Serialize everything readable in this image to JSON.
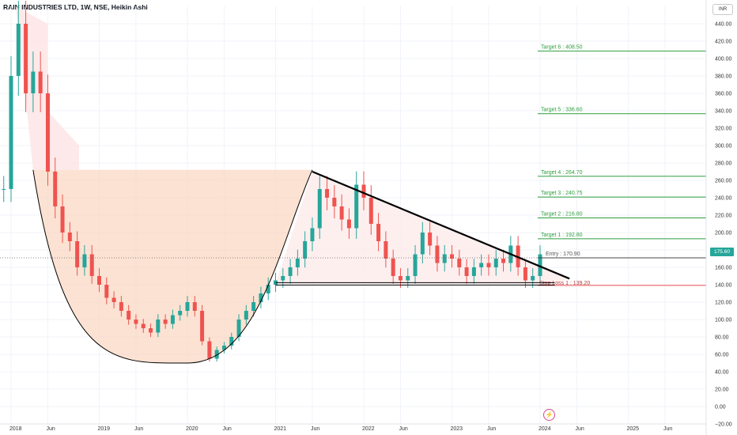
{
  "header": {
    "title": "RAIN INDUSTRIES LTD, 1W, NSE, Heikin Ashi"
  },
  "currency": "INR",
  "last_price_label": "175.60",
  "colors": {
    "up": "#26a69a",
    "down": "#ef5350",
    "target": "#2e9e3e",
    "stop": "#ef5350",
    "trend": "#000000"
  },
  "icons": {
    "bolt": "lightning-bolt-icon"
  },
  "chart_data": {
    "type": "candlestick",
    "title": "RAIN INDUSTRIES LTD, 1W, NSE, Heikin Ashi",
    "ylim": [
      -20,
      460
    ],
    "y_ticks": [
      -20,
      0,
      20,
      40,
      60,
      80,
      100,
      120,
      140,
      160,
      180,
      200,
      220,
      240,
      260,
      280,
      300,
      320,
      340,
      360,
      380,
      400,
      420,
      440
    ],
    "y_tick_labels": [
      "−20.00",
      "0.00",
      "20.00",
      "40.00",
      "60.00",
      "80.00",
      "100.00",
      "120.00",
      "140.00",
      "160.00",
      "180.00",
      "200.00",
      "220.00",
      "240.00",
      "260.00",
      "280.00",
      "300.00",
      "320.00",
      "340.00",
      "360.00",
      "380.00",
      "400.00",
      "420.00",
      "440.00"
    ],
    "x_ticks": [
      {
        "date": "2018-01",
        "label": "2018"
      },
      {
        "date": "2018-06",
        "label": "Jun"
      },
      {
        "date": "2019-01",
        "label": "2019"
      },
      {
        "date": "2019-06",
        "label": "Jun"
      },
      {
        "date": "2020-01",
        "label": "2020"
      },
      {
        "date": "2020-06",
        "label": "Jun"
      },
      {
        "date": "2021-01",
        "label": "2021"
      },
      {
        "date": "2021-06",
        "label": "Jun"
      },
      {
        "date": "2022-01",
        "label": "2022"
      },
      {
        "date": "2022-06",
        "label": "Jun"
      },
      {
        "date": "2023-01",
        "label": "2023"
      },
      {
        "date": "2023-06",
        "label": "Jun"
      },
      {
        "date": "2024-01",
        "label": "2024"
      },
      {
        "date": "2024-06",
        "label": "Jun"
      },
      {
        "date": "2025-01",
        "label": "2025"
      },
      {
        "date": "2025-06",
        "label": "Jun"
      }
    ],
    "price_path": [
      [
        "2017-12",
        250
      ],
      [
        "2018-01",
        380
      ],
      [
        "2018-02",
        440
      ],
      [
        "2018-03",
        360
      ],
      [
        "2018-04",
        385
      ],
      [
        "2018-05",
        360
      ],
      [
        "2018-06",
        270
      ],
      [
        "2018-07",
        230
      ],
      [
        "2018-08",
        200
      ],
      [
        "2018-09",
        190
      ],
      [
        "2018-10",
        160
      ],
      [
        "2018-11",
        175
      ],
      [
        "2018-12",
        150
      ],
      [
        "2019-01",
        140
      ],
      [
        "2019-02",
        125
      ],
      [
        "2019-03",
        120
      ],
      [
        "2019-04",
        110
      ],
      [
        "2019-05",
        100
      ],
      [
        "2019-06",
        95
      ],
      [
        "2019-07",
        90
      ],
      [
        "2019-08",
        85
      ],
      [
        "2019-09",
        100
      ],
      [
        "2019-10",
        95
      ],
      [
        "2019-11",
        105
      ],
      [
        "2019-12",
        110
      ],
      [
        "2020-01",
        120
      ],
      [
        "2020-02",
        110
      ],
      [
        "2020-03",
        75
      ],
      [
        "2020-04",
        55
      ],
      [
        "2020-05",
        65
      ],
      [
        "2020-06",
        70
      ],
      [
        "2020-07",
        80
      ],
      [
        "2020-08",
        100
      ],
      [
        "2020-09",
        110
      ],
      [
        "2020-10",
        120
      ],
      [
        "2020-11",
        130
      ],
      [
        "2020-12",
        140
      ],
      [
        "2021-01",
        145
      ],
      [
        "2021-02",
        150
      ],
      [
        "2021-03",
        160
      ],
      [
        "2021-04",
        170
      ],
      [
        "2021-05",
        190
      ],
      [
        "2021-06",
        205
      ],
      [
        "2021-07",
        250
      ],
      [
        "2021-08",
        240
      ],
      [
        "2021-09",
        230
      ],
      [
        "2021-10",
        215
      ],
      [
        "2021-11",
        205
      ],
      [
        "2021-12",
        255
      ],
      [
        "2022-01",
        240
      ],
      [
        "2022-02",
        210
      ],
      [
        "2022-03",
        190
      ],
      [
        "2022-04",
        170
      ],
      [
        "2022-05",
        150
      ],
      [
        "2022-06",
        145
      ],
      [
        "2022-07",
        150
      ],
      [
        "2022-08",
        175
      ],
      [
        "2022-09",
        200
      ],
      [
        "2022-10",
        185
      ],
      [
        "2022-11",
        165
      ],
      [
        "2022-12",
        175
      ],
      [
        "2023-01",
        170
      ],
      [
        "2023-02",
        160
      ],
      [
        "2023-03",
        150
      ],
      [
        "2023-04",
        160
      ],
      [
        "2023-05",
        165
      ],
      [
        "2023-06",
        160
      ],
      [
        "2023-07",
        170
      ],
      [
        "2023-08",
        165
      ],
      [
        "2023-09",
        185
      ],
      [
        "2023-10",
        160
      ],
      [
        "2023-11",
        145
      ],
      [
        "2023-12",
        150
      ],
      [
        "2024-01",
        175
      ]
    ],
    "annotations": {
      "targets": [
        {
          "label": "Target 1 : 192.80",
          "value": 192.8
        },
        {
          "label": "Target 2 : 216.80",
          "value": 216.8
        },
        {
          "label": "Target 3 : 240.75",
          "value": 240.75
        },
        {
          "label": "Target 4 : 264.70",
          "value": 264.7
        },
        {
          "label": "Target 5 : 336.60",
          "value": 336.6
        },
        {
          "label": "Target 6 : 408.50",
          "value": 408.5
        }
      ],
      "entry": {
        "label": "Entry : 170.90",
        "value": 170.9
      },
      "stop_loss": {
        "label": "Stop Loss 1 : 139.20",
        "value": 139.2
      },
      "last_price": 175.6,
      "descending_trendline": [
        [
          "2021-06",
          270
        ],
        [
          "2024-05",
          147
        ]
      ],
      "support_line": {
        "from": "2021-01",
        "to": "2024-03",
        "value": 141
      },
      "cup_start": [
        "2018-04",
        272
      ],
      "cup_bottom": [
        "2020-01",
        50
      ],
      "cup_end": [
        "2021-06",
        272
      ]
    }
  }
}
